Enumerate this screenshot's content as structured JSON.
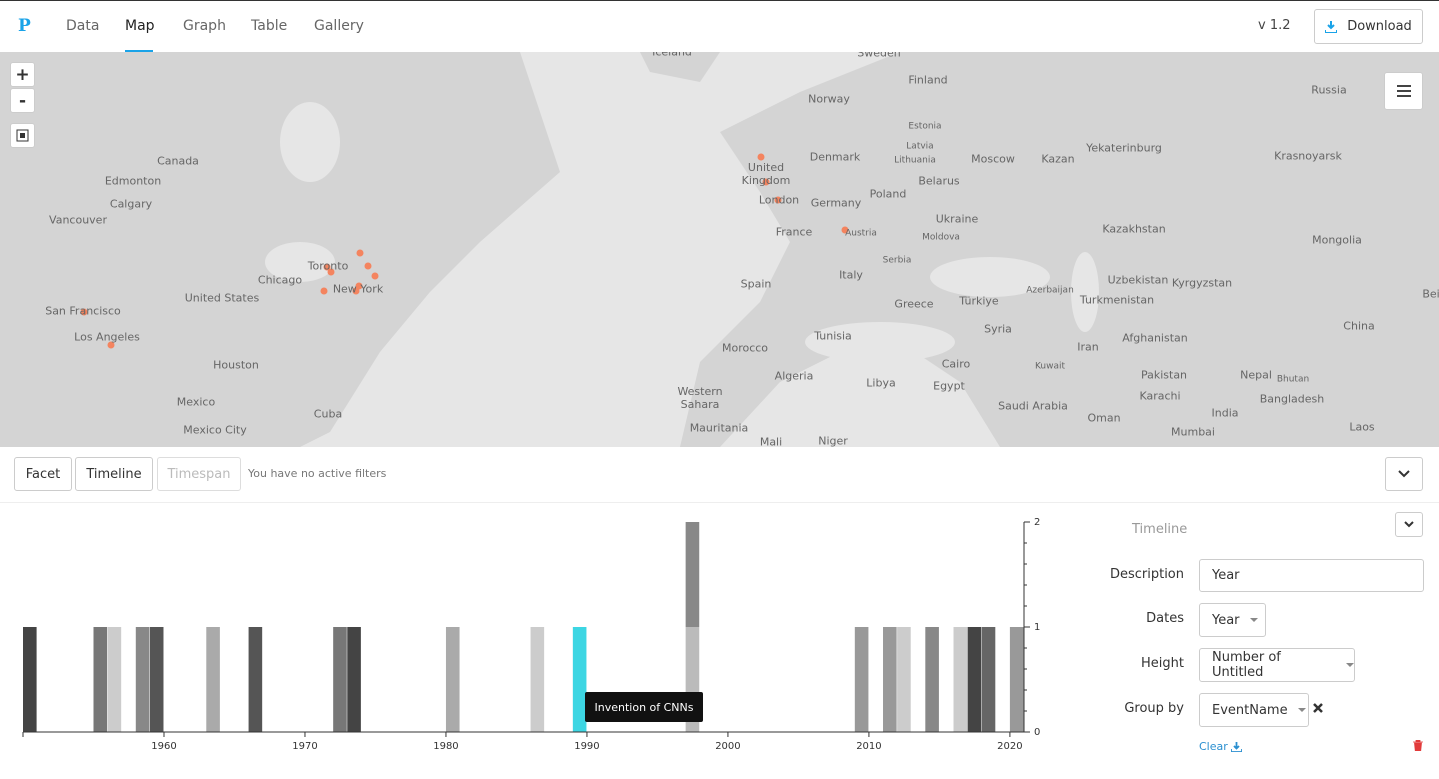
{
  "nav": {
    "logo": "P",
    "tabs": [
      "Data",
      "Map",
      "Graph",
      "Table",
      "Gallery"
    ],
    "version": "v 1.2",
    "download": "Download"
  },
  "map": {
    "zoom_in": "+",
    "zoom_out": "-",
    "labels": [
      "Iceland",
      "Sweden",
      "Finland",
      "Norway",
      "Russia",
      "Estonia",
      "Latvia",
      "Lithuania",
      "Denmark",
      "Moscow",
      "Kazan",
      "Yekaterinburg",
      "Krasnoyarsk",
      "Canada",
      "Edmonton",
      "Calgary",
      "Vancouver",
      "United Kingdom",
      "London",
      "Germany",
      "Poland",
      "Belarus",
      "Ukraine",
      "Moldova",
      "Kazakhstan",
      "Mongolia",
      "France",
      "Austria",
      "Serbia",
      "Toronto",
      "Chicago",
      "New York",
      "United States",
      "San Francisco",
      "Los Angeles",
      "Houston",
      "Spain",
      "Italy",
      "Greece",
      "Türkiye",
      "Azerbaijan",
      "Uzbekistan",
      "Kyrgyzstan",
      "Turkmenistan",
      "Bei",
      "China",
      "Tunisia",
      "Syria",
      "Afghanistan",
      "Iran",
      "Morocco",
      "Algeria",
      "Libya",
      "Egypt",
      "Cairo",
      "Kuwait",
      "Pakistan",
      "Nepal",
      "Bhutan",
      "Karachi",
      "Bangladesh",
      "Mexico",
      "Cuba",
      "Mexico City",
      "Western Sahara",
      "Mauritania",
      "Mali",
      "Niger",
      "Saudi Arabia",
      "Oman",
      "India",
      "Mumbai",
      "Laos"
    ]
  },
  "filters": {
    "buttons": [
      "Facet",
      "Timeline",
      "Timespan"
    ],
    "status": "You have no active filters"
  },
  "chart_data": {
    "type": "bar",
    "x": [
      1950,
      1955,
      1956,
      1958,
      1959,
      1963,
      1966,
      1972,
      1973,
      1980,
      1986,
      1989,
      1997,
      2009,
      2011,
      2012,
      2014,
      2016,
      2017,
      2018,
      2020
    ],
    "series": [
      {
        "values": [
          1,
          1,
          1,
          1,
          1,
          1,
          1,
          1,
          1,
          1,
          1,
          1,
          1,
          1,
          1,
          1,
          1,
          1,
          1,
          1,
          1
        ],
        "colors": [
          "#444444",
          "#777777",
          "#cccccc",
          "#888888",
          "#555555",
          "#aaaaaa",
          "#555555",
          "#777777",
          "#444444",
          "#aaaaaa",
          "#cccccc",
          "#3dd6e3",
          "#bbbbbb",
          "#999999",
          "#999999",
          "#cccccc",
          "#888888",
          "#cccccc",
          "#444444",
          "#666666",
          "#999999"
        ]
      },
      {
        "values": [
          null,
          null,
          null,
          null,
          null,
          null,
          null,
          null,
          null,
          null,
          null,
          null,
          1,
          null,
          null,
          null,
          null,
          null,
          null,
          null,
          null
        ],
        "color": "#888888"
      }
    ],
    "xlim": [
      1950,
      2021
    ],
    "xticks": [
      1960,
      1970,
      1980,
      1990,
      2000,
      2010,
      2020
    ],
    "y2lim": [
      0,
      2
    ],
    "y2ticks": [
      0,
      1,
      2
    ],
    "tooltip": "Invention of CNNs"
  },
  "panel": {
    "title": "Timeline",
    "fields": [
      {
        "label": "Description",
        "value": "Year"
      },
      {
        "label": "Dates",
        "value": "Year"
      },
      {
        "label": "Height",
        "value": "Number of Untitled"
      },
      {
        "label": "Group by",
        "value": "EventName"
      }
    ],
    "clear": "Clear"
  }
}
